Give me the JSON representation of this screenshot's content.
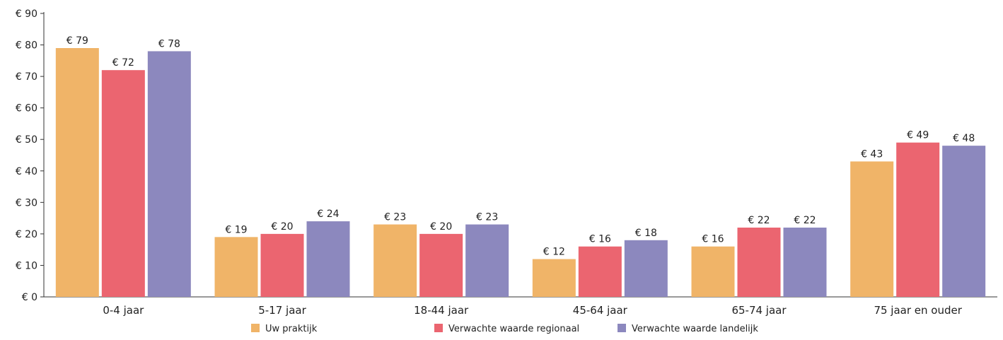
{
  "chart_data": {
    "type": "bar",
    "categories": [
      "0-4 jaar",
      "5-17 jaar",
      "18-44 jaar",
      "45-64 jaar",
      "65-74 jaar",
      "75 jaar en ouder"
    ],
    "series": [
      {
        "name": "Uw praktijk",
        "color": "#F0B468",
        "values": [
          79,
          19,
          23,
          12,
          16,
          43
        ]
      },
      {
        "name": "Verwachte waarde regionaal",
        "color": "#EB6570",
        "values": [
          72,
          20,
          20,
          16,
          22,
          49
        ]
      },
      {
        "name": "Verwachte waarde landelijk",
        "color": "#8C88BE",
        "values": [
          78,
          24,
          23,
          18,
          22,
          48
        ]
      }
    ],
    "value_prefix": "€ ",
    "ylim": [
      0,
      90
    ],
    "yticks": [
      0,
      10,
      20,
      30,
      40,
      50,
      60,
      70,
      80,
      90
    ],
    "grid": false,
    "legend_position": "bottom"
  }
}
